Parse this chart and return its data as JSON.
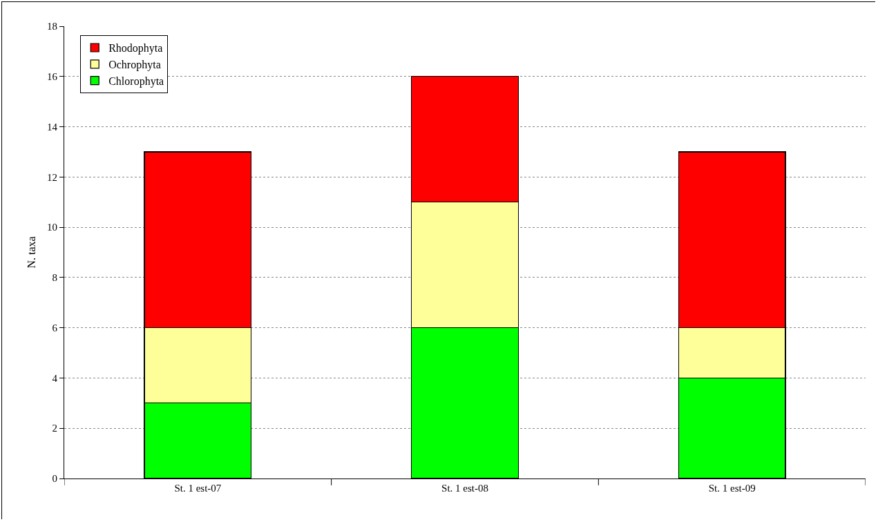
{
  "chart_data": {
    "type": "bar",
    "stacked": true,
    "ylabel": "N. taxa",
    "categories": [
      "St. 1 est-07",
      "St. 1 est-08",
      "St. 1 est-09"
    ],
    "series": [
      {
        "name": "Chlorophyta",
        "color": "#00ff00",
        "values": [
          3,
          6,
          4
        ]
      },
      {
        "name": "Ochrophyta",
        "color": "#ffff99",
        "values": [
          3,
          5,
          2
        ]
      },
      {
        "name": "Rhodophyta",
        "color": "#ff0000",
        "values": [
          7,
          5,
          7
        ]
      }
    ],
    "ylim": [
      0,
      18
    ],
    "yticks": [
      0,
      2,
      4,
      6,
      8,
      10,
      12,
      14,
      16,
      18
    ],
    "grid": "y",
    "legend": "top left"
  }
}
